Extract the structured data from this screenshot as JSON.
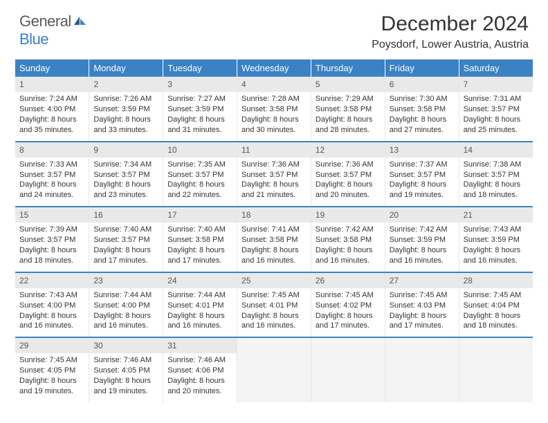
{
  "logo": {
    "word1": "General",
    "word2": "Blue"
  },
  "title": "December 2024",
  "location": "Poysdorf, Lower Austria, Austria",
  "colors": {
    "header_bg": "#3a82c4",
    "header_text": "#ffffff",
    "daynum_bg": "#e9e9e9",
    "rule": "#3a82c4",
    "logo_dark": "#5a5a5a",
    "logo_blue": "#3a7fc4"
  },
  "day_names": [
    "Sunday",
    "Monday",
    "Tuesday",
    "Wednesday",
    "Thursday",
    "Friday",
    "Saturday"
  ],
  "weeks": [
    [
      {
        "n": "1",
        "sr": "Sunrise: 7:24 AM",
        "ss": "Sunset: 4:00 PM",
        "d1": "Daylight: 8 hours",
        "d2": "and 35 minutes."
      },
      {
        "n": "2",
        "sr": "Sunrise: 7:26 AM",
        "ss": "Sunset: 3:59 PM",
        "d1": "Daylight: 8 hours",
        "d2": "and 33 minutes."
      },
      {
        "n": "3",
        "sr": "Sunrise: 7:27 AM",
        "ss": "Sunset: 3:59 PM",
        "d1": "Daylight: 8 hours",
        "d2": "and 31 minutes."
      },
      {
        "n": "4",
        "sr": "Sunrise: 7:28 AM",
        "ss": "Sunset: 3:58 PM",
        "d1": "Daylight: 8 hours",
        "d2": "and 30 minutes."
      },
      {
        "n": "5",
        "sr": "Sunrise: 7:29 AM",
        "ss": "Sunset: 3:58 PM",
        "d1": "Daylight: 8 hours",
        "d2": "and 28 minutes."
      },
      {
        "n": "6",
        "sr": "Sunrise: 7:30 AM",
        "ss": "Sunset: 3:58 PM",
        "d1": "Daylight: 8 hours",
        "d2": "and 27 minutes."
      },
      {
        "n": "7",
        "sr": "Sunrise: 7:31 AM",
        "ss": "Sunset: 3:57 PM",
        "d1": "Daylight: 8 hours",
        "d2": "and 25 minutes."
      }
    ],
    [
      {
        "n": "8",
        "sr": "Sunrise: 7:33 AM",
        "ss": "Sunset: 3:57 PM",
        "d1": "Daylight: 8 hours",
        "d2": "and 24 minutes."
      },
      {
        "n": "9",
        "sr": "Sunrise: 7:34 AM",
        "ss": "Sunset: 3:57 PM",
        "d1": "Daylight: 8 hours",
        "d2": "and 23 minutes."
      },
      {
        "n": "10",
        "sr": "Sunrise: 7:35 AM",
        "ss": "Sunset: 3:57 PM",
        "d1": "Daylight: 8 hours",
        "d2": "and 22 minutes."
      },
      {
        "n": "11",
        "sr": "Sunrise: 7:36 AM",
        "ss": "Sunset: 3:57 PM",
        "d1": "Daylight: 8 hours",
        "d2": "and 21 minutes."
      },
      {
        "n": "12",
        "sr": "Sunrise: 7:36 AM",
        "ss": "Sunset: 3:57 PM",
        "d1": "Daylight: 8 hours",
        "d2": "and 20 minutes."
      },
      {
        "n": "13",
        "sr": "Sunrise: 7:37 AM",
        "ss": "Sunset: 3:57 PM",
        "d1": "Daylight: 8 hours",
        "d2": "and 19 minutes."
      },
      {
        "n": "14",
        "sr": "Sunrise: 7:38 AM",
        "ss": "Sunset: 3:57 PM",
        "d1": "Daylight: 8 hours",
        "d2": "and 18 minutes."
      }
    ],
    [
      {
        "n": "15",
        "sr": "Sunrise: 7:39 AM",
        "ss": "Sunset: 3:57 PM",
        "d1": "Daylight: 8 hours",
        "d2": "and 18 minutes."
      },
      {
        "n": "16",
        "sr": "Sunrise: 7:40 AM",
        "ss": "Sunset: 3:57 PM",
        "d1": "Daylight: 8 hours",
        "d2": "and 17 minutes."
      },
      {
        "n": "17",
        "sr": "Sunrise: 7:40 AM",
        "ss": "Sunset: 3:58 PM",
        "d1": "Daylight: 8 hours",
        "d2": "and 17 minutes."
      },
      {
        "n": "18",
        "sr": "Sunrise: 7:41 AM",
        "ss": "Sunset: 3:58 PM",
        "d1": "Daylight: 8 hours",
        "d2": "and 16 minutes."
      },
      {
        "n": "19",
        "sr": "Sunrise: 7:42 AM",
        "ss": "Sunset: 3:58 PM",
        "d1": "Daylight: 8 hours",
        "d2": "and 16 minutes."
      },
      {
        "n": "20",
        "sr": "Sunrise: 7:42 AM",
        "ss": "Sunset: 3:59 PM",
        "d1": "Daylight: 8 hours",
        "d2": "and 16 minutes."
      },
      {
        "n": "21",
        "sr": "Sunrise: 7:43 AM",
        "ss": "Sunset: 3:59 PM",
        "d1": "Daylight: 8 hours",
        "d2": "and 16 minutes."
      }
    ],
    [
      {
        "n": "22",
        "sr": "Sunrise: 7:43 AM",
        "ss": "Sunset: 4:00 PM",
        "d1": "Daylight: 8 hours",
        "d2": "and 16 minutes."
      },
      {
        "n": "23",
        "sr": "Sunrise: 7:44 AM",
        "ss": "Sunset: 4:00 PM",
        "d1": "Daylight: 8 hours",
        "d2": "and 16 minutes."
      },
      {
        "n": "24",
        "sr": "Sunrise: 7:44 AM",
        "ss": "Sunset: 4:01 PM",
        "d1": "Daylight: 8 hours",
        "d2": "and 16 minutes."
      },
      {
        "n": "25",
        "sr": "Sunrise: 7:45 AM",
        "ss": "Sunset: 4:01 PM",
        "d1": "Daylight: 8 hours",
        "d2": "and 16 minutes."
      },
      {
        "n": "26",
        "sr": "Sunrise: 7:45 AM",
        "ss": "Sunset: 4:02 PM",
        "d1": "Daylight: 8 hours",
        "d2": "and 17 minutes."
      },
      {
        "n": "27",
        "sr": "Sunrise: 7:45 AM",
        "ss": "Sunset: 4:03 PM",
        "d1": "Daylight: 8 hours",
        "d2": "and 17 minutes."
      },
      {
        "n": "28",
        "sr": "Sunrise: 7:45 AM",
        "ss": "Sunset: 4:04 PM",
        "d1": "Daylight: 8 hours",
        "d2": "and 18 minutes."
      }
    ],
    [
      {
        "n": "29",
        "sr": "Sunrise: 7:45 AM",
        "ss": "Sunset: 4:05 PM",
        "d1": "Daylight: 8 hours",
        "d2": "and 19 minutes."
      },
      {
        "n": "30",
        "sr": "Sunrise: 7:46 AM",
        "ss": "Sunset: 4:05 PM",
        "d1": "Daylight: 8 hours",
        "d2": "and 19 minutes."
      },
      {
        "n": "31",
        "sr": "Sunrise: 7:46 AM",
        "ss": "Sunset: 4:06 PM",
        "d1": "Daylight: 8 hours",
        "d2": "and 20 minutes."
      },
      null,
      null,
      null,
      null
    ]
  ]
}
